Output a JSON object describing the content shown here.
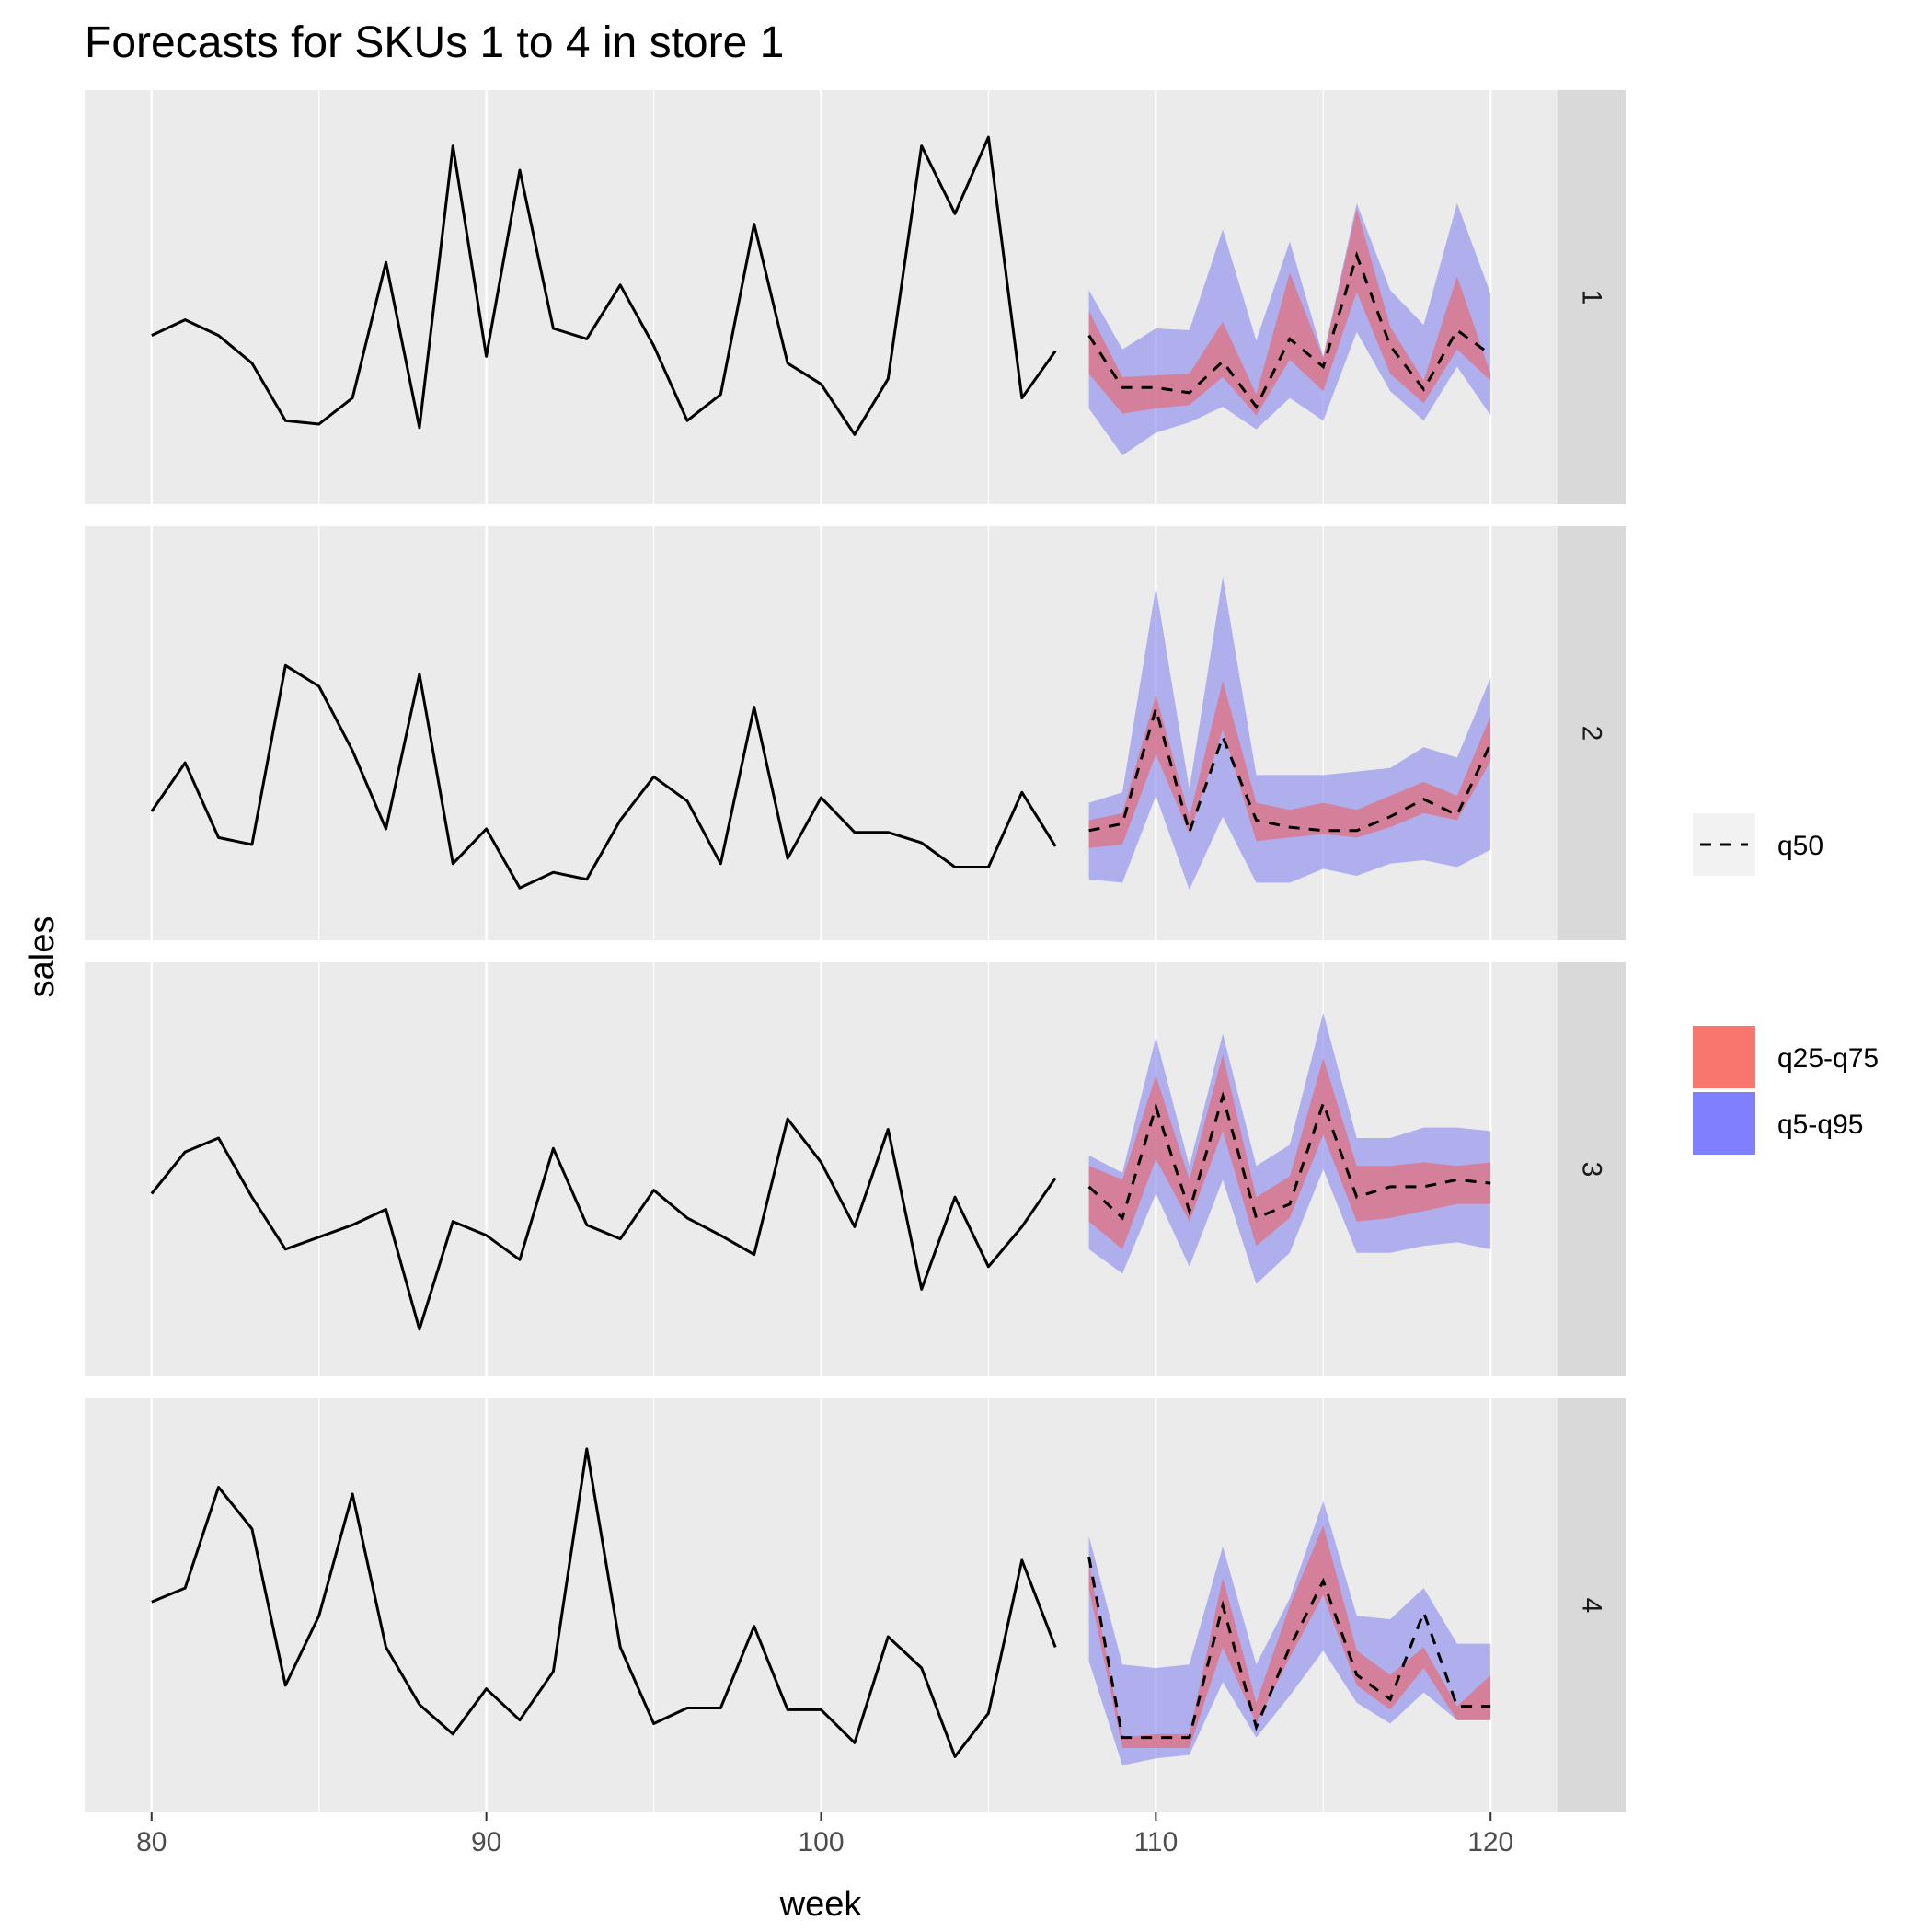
{
  "chart_data": {
    "type": "line",
    "title": "Forecasts for SKUs 1 to 4 in store 1",
    "xlabel": "week",
    "ylabel": "sales",
    "xlim": [
      78,
      122
    ],
    "x_ticks": [
      80,
      90,
      100,
      110,
      120
    ],
    "x_tick_labels": [
      "80",
      "90",
      "100",
      "110",
      "120"
    ],
    "legend": {
      "position": "right",
      "line_items": [
        {
          "key": "q50",
          "label": "q50",
          "style": "dashed",
          "color": "#000000"
        }
      ],
      "fill_items": [
        {
          "key": "q25-q75",
          "label": "q25-q75",
          "color": "#F8766D"
        },
        {
          "key": "q5-q95",
          "label": "q5-q95",
          "color": "#8080FF"
        }
      ]
    },
    "colors": {
      "panel_bg": "#EBEBEB",
      "strip_bg": "#D9D9D9",
      "grid": "#FFFFFF",
      "line": "#000000",
      "band_inner": "#E0707F",
      "band_outer": "#8B8BF0"
    },
    "facets": [
      {
        "label": "1",
        "ylim": [
          0,
          100
        ],
        "history_x": [
          80,
          81,
          82,
          83,
          84,
          85,
          86,
          87,
          88,
          89,
          90,
          91,
          92,
          93,
          94,
          95,
          96,
          97,
          98,
          99,
          100,
          101,
          102,
          103,
          104,
          105,
          106,
          107
        ],
        "history_y": [
          39,
          43.5,
          39,
          31,
          14.5,
          13.5,
          21,
          60,
          12.5,
          93.5,
          33,
          86.5,
          41,
          38,
          53.5,
          36,
          14.5,
          22,
          71,
          31,
          25,
          10.5,
          26.5,
          93.5,
          74,
          96,
          21,
          34.5
        ],
        "forecast_x": [
          108,
          109,
          110,
          111,
          112,
          113,
          114,
          115,
          116,
          117,
          118,
          119,
          120
        ],
        "q5": [
          18,
          4.5,
          11,
          14,
          18.5,
          12,
          21,
          14.5,
          40,
          23,
          14.5,
          30,
          16
        ],
        "q25": [
          28,
          16.5,
          18,
          19,
          27,
          16,
          32,
          23,
          51.5,
          28,
          19.5,
          35,
          26
        ],
        "q50": [
          39,
          24,
          24,
          22.5,
          31.5,
          18.5,
          38,
          30,
          62,
          36,
          23.5,
          40.5,
          33.5
        ],
        "q75": [
          46,
          27,
          27.5,
          28,
          43,
          22,
          57,
          32.5,
          75.5,
          41.5,
          26,
          56,
          28
        ],
        "q95": [
          52,
          35,
          41,
          40.5,
          69.5,
          37.5,
          66,
          33,
          77,
          52,
          42,
          77,
          51
        ]
      },
      {
        "label": "2",
        "ylim": [
          0,
          100
        ],
        "history_x": [
          80,
          81,
          82,
          83,
          84,
          85,
          86,
          87,
          88,
          89,
          90,
          91,
          92,
          93,
          94,
          95,
          96,
          97,
          98,
          99,
          100,
          101,
          102,
          103,
          104,
          105,
          106,
          107
        ],
        "history_y": [
          27.5,
          41.5,
          20,
          18,
          69.5,
          63.5,
          45,
          22.5,
          67,
          12.5,
          22.5,
          5.5,
          10,
          8,
          25,
          37.5,
          30.5,
          12.5,
          57.5,
          14,
          31.5,
          21.5,
          21.5,
          18.5,
          11.5,
          11.5,
          33,
          17.5
        ],
        "forecast_x": [
          108,
          109,
          110,
          111,
          112,
          113,
          114,
          115,
          116,
          117,
          118,
          119,
          120
        ],
        "q5": [
          8,
          7,
          32,
          5,
          26,
          7,
          7,
          11,
          9,
          12.5,
          13.5,
          11.5,
          16.5
        ],
        "q25": [
          17,
          18,
          44,
          21,
          51,
          19,
          20,
          21,
          20,
          23,
          27,
          25,
          42
        ],
        "q50": [
          22,
          24,
          57,
          21.5,
          49,
          25,
          23,
          22,
          22,
          26,
          31,
          26.5,
          47
        ],
        "q75": [
          25,
          27,
          61,
          26,
          65,
          30,
          28,
          30,
          28,
          32,
          36,
          32,
          55
        ],
        "q95": [
          30,
          33,
          92,
          34,
          95,
          38,
          38,
          38,
          39,
          40,
          46,
          43,
          66
        ]
      },
      {
        "label": "3",
        "ylim": [
          0,
          100
        ],
        "history_x": [
          80,
          81,
          82,
          83,
          84,
          85,
          86,
          87,
          88,
          89,
          90,
          91,
          92,
          93,
          94,
          95,
          96,
          97,
          98,
          99,
          100,
          101,
          102,
          103,
          104,
          105,
          106,
          107
        ],
        "history_y": [
          43,
          55,
          59,
          42,
          27,
          30.5,
          34,
          38.5,
          4,
          35,
          31,
          24,
          56,
          34,
          30,
          44,
          36,
          31,
          25.5,
          64.5,
          52,
          33.5,
          61.5,
          15.5,
          42,
          22,
          33.5,
          47.5
        ],
        "forecast_x": [
          108,
          109,
          110,
          111,
          112,
          113,
          114,
          115,
          116,
          117,
          118,
          119,
          120
        ],
        "q5": [
          27,
          20,
          43,
          22,
          47,
          17,
          26,
          50,
          26,
          26,
          28,
          29,
          27
        ],
        "q25": [
          35,
          27,
          53,
          35,
          61,
          28,
          36,
          60,
          35,
          36,
          38,
          40,
          40
        ],
        "q50": [
          45,
          36,
          68,
          38,
          71,
          36,
          40,
          69,
          42,
          45,
          45,
          47,
          46
        ],
        "q75": [
          51,
          47,
          77,
          47,
          83,
          42,
          48,
          82,
          51,
          51,
          52,
          51,
          52
        ],
        "q95": [
          54,
          49,
          88,
          51,
          89,
          51,
          57,
          95,
          59,
          59,
          62,
          62,
          61
        ]
      },
      {
        "label": "4",
        "ylim": [
          0,
          100
        ],
        "history_x": [
          80,
          81,
          82,
          83,
          84,
          85,
          86,
          87,
          88,
          89,
          90,
          91,
          92,
          93,
          94,
          95,
          96,
          97,
          98,
          99,
          100,
          101,
          102,
          103,
          104,
          105,
          106,
          107
        ],
        "history_y": [
          51,
          55,
          84,
          72,
          27,
          47,
          82,
          38,
          21.5,
          13,
          26,
          17,
          31,
          95,
          38,
          16,
          20.5,
          20.5,
          44,
          20,
          20,
          10.5,
          41,
          32,
          6.5,
          19,
          63,
          38
        ],
        "forecast_x": [
          108,
          109,
          110,
          111,
          112,
          113,
          114,
          115,
          116,
          117,
          118,
          119,
          120
        ],
        "q5": [
          34,
          4,
          6,
          7,
          28,
          12,
          24,
          37,
          22,
          16,
          25,
          17,
          17
        ],
        "q25": [
          55,
          9,
          9,
          9,
          38,
          16,
          35,
          53,
          27,
          20,
          32,
          17,
          17
        ],
        "q50": [
          64,
          12,
          12,
          12,
          50,
          15,
          38,
          57,
          30,
          23,
          48,
          21,
          21
        ],
        "q75": [
          62,
          12,
          13,
          13,
          58,
          22,
          50,
          73,
          37,
          30,
          38,
          21,
          30
        ],
        "q95": [
          70,
          33,
          32,
          33,
          67,
          33,
          52,
          80,
          47,
          46,
          55,
          39,
          39
        ]
      }
    ]
  }
}
